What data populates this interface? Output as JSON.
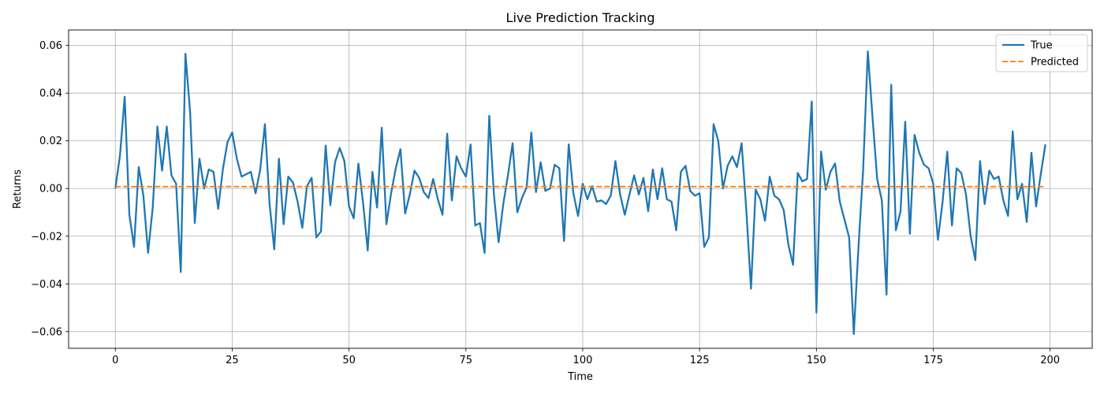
{
  "chart_data": {
    "type": "line",
    "title": "Live Prediction Tracking",
    "xlabel": "Time",
    "ylabel": "Returns",
    "xlim": [
      -10,
      209
    ],
    "ylim": [
      -0.067,
      0.0665
    ],
    "xticks": [
      0,
      25,
      50,
      75,
      100,
      125,
      150,
      175,
      200
    ],
    "xtick_labels": [
      "0",
      "25",
      "50",
      "75",
      "100",
      "125",
      "150",
      "175",
      "200"
    ],
    "yticks": [
      -0.06,
      -0.04,
      -0.02,
      0.0,
      0.02,
      0.04,
      0.06
    ],
    "ytick_labels": [
      "−0.06",
      "−0.04",
      "−0.02",
      "0.00",
      "0.02",
      "0.04",
      "0.06"
    ],
    "grid": true,
    "legend_position": "top-right",
    "series": [
      {
        "name": "True",
        "color": "#1f77b4",
        "style": "solid",
        "x_start": 0,
        "x_step": 1,
        "values": [
          0.0,
          0.014,
          0.0385,
          -0.011,
          -0.0245,
          0.009,
          -0.003,
          -0.027,
          -0.008,
          0.026,
          0.0075,
          0.026,
          0.0055,
          0.002,
          -0.035,
          0.0565,
          0.032,
          -0.0145,
          0.0125,
          0.0,
          0.008,
          0.007,
          -0.0085,
          0.008,
          0.0195,
          0.0235,
          0.0125,
          0.005,
          0.006,
          0.007,
          -0.002,
          0.008,
          0.027,
          -0.0065,
          -0.0255,
          0.0125,
          -0.015,
          0.005,
          0.0025,
          -0.0055,
          -0.0165,
          0.001,
          0.0045,
          -0.0205,
          -0.018,
          0.018,
          -0.007,
          0.011,
          0.017,
          0.0115,
          -0.0075,
          -0.0125,
          0.0105,
          -0.006,
          -0.026,
          0.007,
          -0.008,
          0.0255,
          -0.015,
          -0.002,
          0.0085,
          0.0165,
          -0.0105,
          -0.0025,
          0.0075,
          0.0045,
          -0.0015,
          -0.004,
          0.004,
          -0.0045,
          -0.011,
          0.023,
          -0.005,
          0.0135,
          0.0085,
          0.005,
          0.0185,
          -0.0155,
          -0.0145,
          -0.027,
          0.0305,
          -0.0025,
          -0.0225,
          -0.0065,
          0.0055,
          0.019,
          -0.01,
          -0.004,
          0.0005,
          0.0235,
          -0.0015,
          0.011,
          -0.001,
          0.0,
          0.01,
          0.0085,
          -0.022,
          0.0185,
          -0.002,
          -0.0115,
          0.002,
          -0.0045,
          0.001,
          -0.0055,
          -0.005,
          -0.0065,
          -0.003,
          0.0115,
          -0.0025,
          -0.011,
          -0.0025,
          0.0055,
          -0.0025,
          0.0045,
          -0.0095,
          0.008,
          -0.0045,
          0.0085,
          -0.0045,
          -0.0055,
          -0.0175,
          0.007,
          0.0095,
          -0.001,
          -0.003,
          -0.002,
          -0.0245,
          -0.0205,
          0.027,
          0.02,
          0.0,
          0.0095,
          0.0135,
          0.009,
          0.019,
          -0.009,
          -0.042,
          -0.0005,
          -0.0045,
          -0.0135,
          0.005,
          -0.003,
          -0.0045,
          -0.009,
          -0.0235,
          -0.032,
          0.0065,
          0.003,
          0.004,
          0.0365,
          -0.052,
          0.0155,
          -0.0005,
          0.007,
          0.0105,
          -0.0055,
          -0.013,
          -0.0205,
          -0.061,
          -0.0245,
          0.008,
          0.0575,
          0.03,
          0.004,
          -0.005,
          -0.0445,
          0.0435,
          -0.0175,
          -0.0095,
          0.028,
          -0.019,
          0.0225,
          0.015,
          0.01,
          0.0085,
          0.002,
          -0.0215,
          -0.0055,
          0.0155,
          -0.0155,
          0.0085,
          0.0065,
          -0.0025,
          -0.02,
          -0.03,
          0.0115,
          -0.0065,
          0.0075,
          0.004,
          0.005,
          -0.005,
          -0.0115,
          0.024,
          -0.0045,
          0.002,
          -0.014,
          0.015,
          -0.0075,
          0.006,
          0.0185
        ]
      },
      {
        "name": "Predicted",
        "color": "#ff7f0e",
        "style": "dashed",
        "x": [
          0,
          199
        ],
        "values": [
          0.0008,
          0.0008
        ]
      }
    ]
  }
}
